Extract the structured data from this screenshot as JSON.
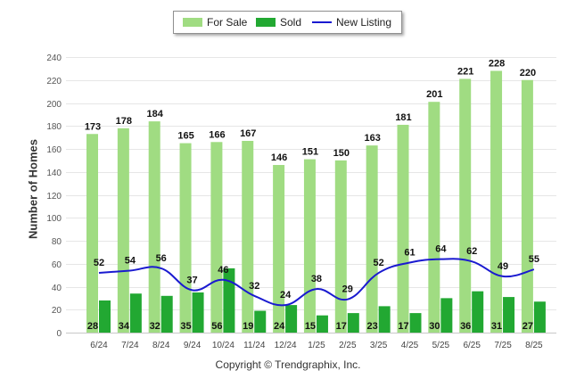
{
  "chart_data": {
    "type": "bar",
    "title": "",
    "xlabel": "",
    "ylabel": "Number of Homes",
    "ylim": [
      0,
      240
    ],
    "yticks": [
      0,
      20,
      40,
      60,
      80,
      100,
      120,
      140,
      160,
      180,
      200,
      220,
      240
    ],
    "grid": true,
    "legend_position": "top-center",
    "categories": [
      "6/24",
      "7/24",
      "8/24",
      "9/24",
      "10/24",
      "11/24",
      "12/24",
      "1/25",
      "2/25",
      "3/25",
      "4/25",
      "5/25",
      "6/25",
      "7/25",
      "8/25"
    ],
    "series": [
      {
        "name": "For Sale",
        "type": "bar",
        "color": "#a0dc82",
        "values": [
          173,
          178,
          184,
          165,
          166,
          167,
          146,
          151,
          150,
          163,
          181,
          201,
          221,
          228,
          220
        ]
      },
      {
        "name": "Sold",
        "type": "bar",
        "color": "#22a832",
        "values": [
          28,
          34,
          32,
          35,
          56,
          19,
          24,
          15,
          17,
          23,
          17,
          30,
          36,
          31,
          27
        ]
      },
      {
        "name": "New Listing",
        "type": "line",
        "color": "#1a1ad0",
        "values": [
          52,
          54,
          56,
          37,
          46,
          32,
          24,
          38,
          29,
          52,
          61,
          64,
          62,
          49,
          55
        ]
      }
    ]
  },
  "footer": {
    "copyright": "Copyright © Trendgraphix, Inc."
  }
}
